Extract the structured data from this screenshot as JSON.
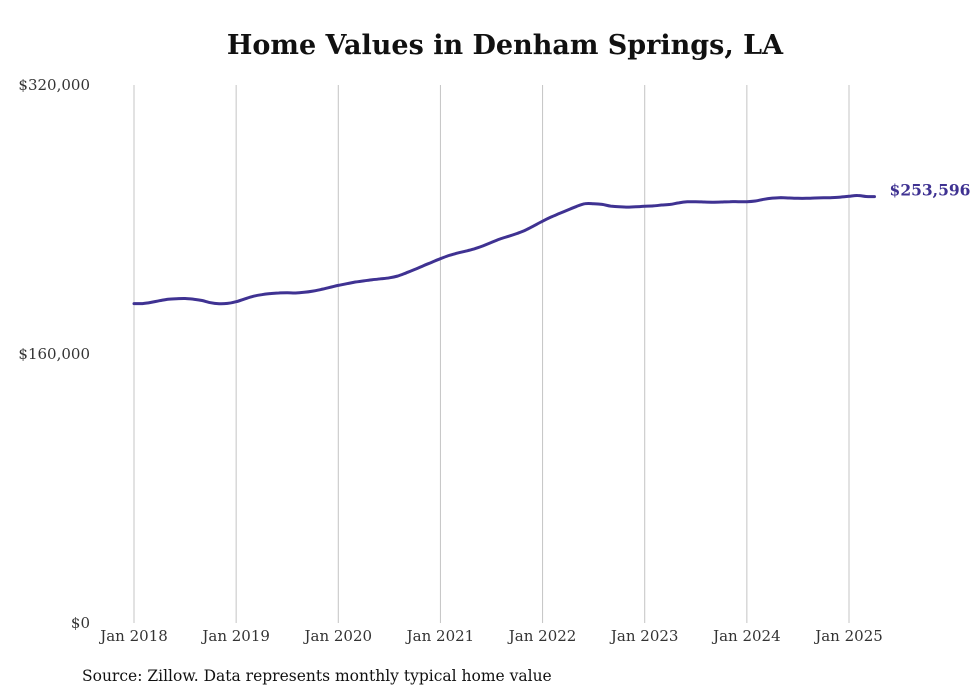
{
  "chart_data": {
    "type": "line",
    "title": "Home Values in Denham Springs, LA",
    "xlabel": "",
    "ylabel": "",
    "ylim": [
      0,
      320000
    ],
    "y_ticks": [
      {
        "value": 0,
        "label": "$0"
      },
      {
        "value": 160000,
        "label": "$160,000"
      },
      {
        "value": 320000,
        "label": "$320,000"
      }
    ],
    "x_ticks": [
      "Jan 2018",
      "Jan 2019",
      "Jan 2020",
      "Jan 2021",
      "Jan 2022",
      "Jan 2023",
      "Jan 2024",
      "Jan 2025"
    ],
    "grid": "vertical",
    "line_color": "#3f3292",
    "end_label": "$253,596",
    "series": [
      {
        "x": [
          "2018-01",
          "2018-02",
          "2018-03",
          "2018-04",
          "2018-05",
          "2018-06",
          "2018-07",
          "2018-08",
          "2018-09",
          "2018-10",
          "2018-11",
          "2018-12",
          "2019-01",
          "2019-02",
          "2019-03",
          "2019-04",
          "2019-05",
          "2019-06",
          "2019-07",
          "2019-08",
          "2019-09",
          "2019-10",
          "2019-11",
          "2019-12",
          "2020-01",
          "2020-02",
          "2020-03",
          "2020-04",
          "2020-05",
          "2020-06",
          "2020-07",
          "2020-08",
          "2020-09",
          "2020-10",
          "2020-11",
          "2020-12",
          "2021-01",
          "2021-02",
          "2021-03",
          "2021-04",
          "2021-05",
          "2021-06",
          "2021-07",
          "2021-08",
          "2021-09",
          "2021-10",
          "2021-11",
          "2021-12",
          "2022-01",
          "2022-02",
          "2022-03",
          "2022-04",
          "2022-05",
          "2022-06",
          "2022-07",
          "2022-08",
          "2022-09",
          "2022-10",
          "2022-11",
          "2022-12",
          "2023-01",
          "2023-02",
          "2023-03",
          "2023-04",
          "2023-05",
          "2023-06",
          "2023-07",
          "2023-08",
          "2023-09",
          "2023-10",
          "2023-11",
          "2023-12",
          "2024-01",
          "2024-02",
          "2024-03",
          "2024-04",
          "2024-05",
          "2024-06",
          "2024-07",
          "2024-08",
          "2024-09",
          "2024-10",
          "2024-11",
          "2024-12",
          "2025-01",
          "2025-02",
          "2025-03",
          "2025-04"
        ],
        "values": [
          190000,
          190000,
          190700,
          191700,
          192600,
          192900,
          193000,
          192600,
          191800,
          190500,
          189900,
          190100,
          191100,
          192800,
          194300,
          195300,
          195900,
          196300,
          196400,
          196300,
          196700,
          197400,
          198400,
          199600,
          200800,
          201800,
          202800,
          203500,
          204200,
          204700,
          205300,
          206400,
          208300,
          210300,
          212500,
          214600,
          216700,
          218600,
          220000,
          221200,
          222600,
          224300,
          226400,
          228400,
          230000,
          231700,
          233700,
          236300,
          239000,
          241500,
          243600,
          245700,
          247800,
          249400,
          249400,
          249000,
          248000,
          247600,
          247400,
          247600,
          247900,
          248100,
          248600,
          249000,
          249900,
          250500,
          250600,
          250400,
          250300,
          250400,
          250600,
          250600,
          250600,
          251000,
          252000,
          252700,
          253000,
          252800,
          252600,
          252600,
          252800,
          252900,
          253000,
          253300,
          253800,
          254300,
          253700,
          253596
        ]
      }
    ]
  },
  "source_note": "Source: Zillow. Data represents monthly typical home value"
}
